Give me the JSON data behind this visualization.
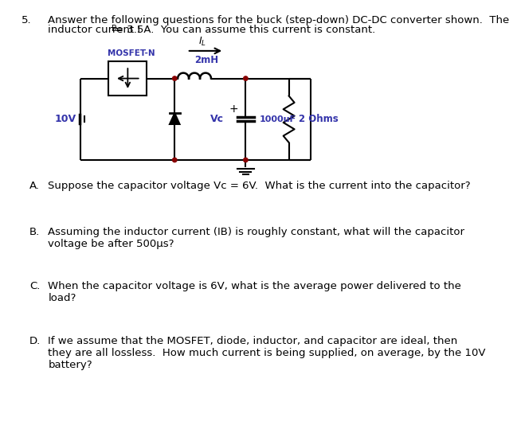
{
  "title_num": "5.",
  "title_text1": "Answer the following questions for the buck (step-down) DC-DC converter shown.  The",
  "title_text2": "inductor current I",
  "title_text2b": "B",
  "title_text2c": "= 3.5A.  You can assume this current is constant.",
  "background": "#ffffff",
  "circuit": {
    "battery_label": "10V",
    "mosfet_label": "MOSFET-N",
    "inductor_label": "2mH",
    "capacitor_label": "1000uF",
    "capacitor_voltage": "Vc",
    "resistor_label": "2 Ohms",
    "current_label": "I",
    "current_sub": "L",
    "plus_sign": "+",
    "minus_sign": "-"
  },
  "questions": [
    {
      "letter": "A.",
      "text": "Suppose the capacitor voltage Vc = 6V.  What is the current into the capacitor?"
    },
    {
      "letter": "B.",
      "text": "Assuming the inductor current (IB) is roughly constant, what will the capacitor\nvoltage be after 500μs?"
    },
    {
      "letter": "C.",
      "text": "When the capacitor voltage is 6V, what is the average power delivered to the\nload?"
    },
    {
      "letter": "D.",
      "text": "If we assume that the MOSFET, diode, inductor, and capacitor are ideal, then\nthey are all lossless.  How much current is being supplied, on average, by the 10V\nbattery?"
    }
  ],
  "font_size_title": 9.5,
  "font_size_questions": 9.5,
  "circuit_color": "#000000",
  "label_color": "#3333aa",
  "dot_color": "#880000",
  "line_width": 1.5
}
